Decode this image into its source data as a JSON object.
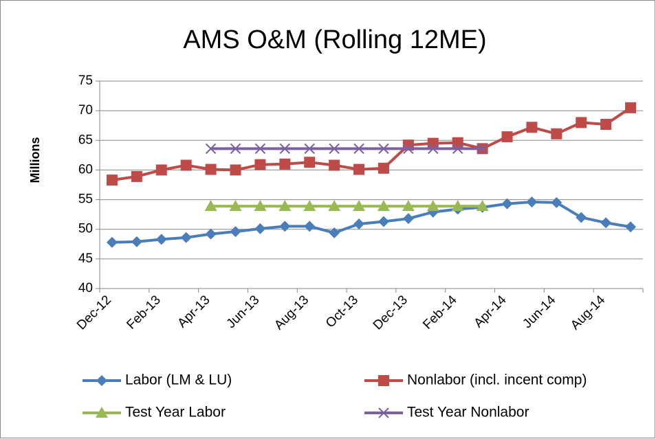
{
  "chart_data": {
    "type": "line",
    "title": "AMS O&M (Rolling 12ME)",
    "y_label": "Millions",
    "categories": [
      "Dec-12",
      null,
      "Feb-13",
      null,
      "Apr-13",
      null,
      "Jun-13",
      null,
      "Aug-13",
      null,
      "Oct-13",
      null,
      "Dec-13",
      null,
      "Feb-14",
      null,
      "Apr-14",
      null,
      "Jun-14",
      null,
      "Aug-14",
      null
    ],
    "series": [
      {
        "name": "Labor (LM & LU)",
        "color": "#4a7ebb",
        "marker": "diamond",
        "values": [
          47.8,
          47.9,
          48.3,
          48.6,
          49.2,
          49.6,
          50.1,
          50.5,
          50.5,
          49.4,
          50.9,
          51.3,
          51.8,
          52.9,
          53.4,
          53.7,
          54.3,
          54.6,
          54.5,
          52.0,
          51.1,
          50.4
        ]
      },
      {
        "name": "Nonlabor (incl. incent comp)",
        "color": "#be4b48",
        "marker": "square",
        "values": [
          58.3,
          58.9,
          60.0,
          60.8,
          60.1,
          60.0,
          60.9,
          61.0,
          61.3,
          60.8,
          60.1,
          60.3,
          64.2,
          64.5,
          64.6,
          63.6,
          65.6,
          67.2,
          66.1,
          68.0,
          67.7,
          70.5
        ]
      },
      {
        "name": "Test Year Labor",
        "color": "#98b954",
        "marker": "triangle",
        "values": [
          null,
          null,
          null,
          null,
          53.9,
          53.9,
          53.9,
          53.9,
          53.9,
          53.9,
          53.9,
          53.9,
          53.9,
          53.9,
          53.9,
          53.9,
          null,
          null,
          null,
          null,
          null,
          null
        ]
      },
      {
        "name": "Test Year Nonlabor",
        "color": "#7d60a0",
        "marker": "x",
        "values": [
          null,
          null,
          null,
          null,
          63.6,
          63.6,
          63.6,
          63.6,
          63.6,
          63.6,
          63.6,
          63.6,
          63.6,
          63.6,
          63.6,
          63.6,
          null,
          null,
          null,
          null,
          null,
          null
        ]
      }
    ],
    "ylim": [
      40,
      75
    ],
    "yticks": [
      40,
      45,
      50,
      55,
      60,
      65,
      70,
      75
    ],
    "grid": true
  }
}
